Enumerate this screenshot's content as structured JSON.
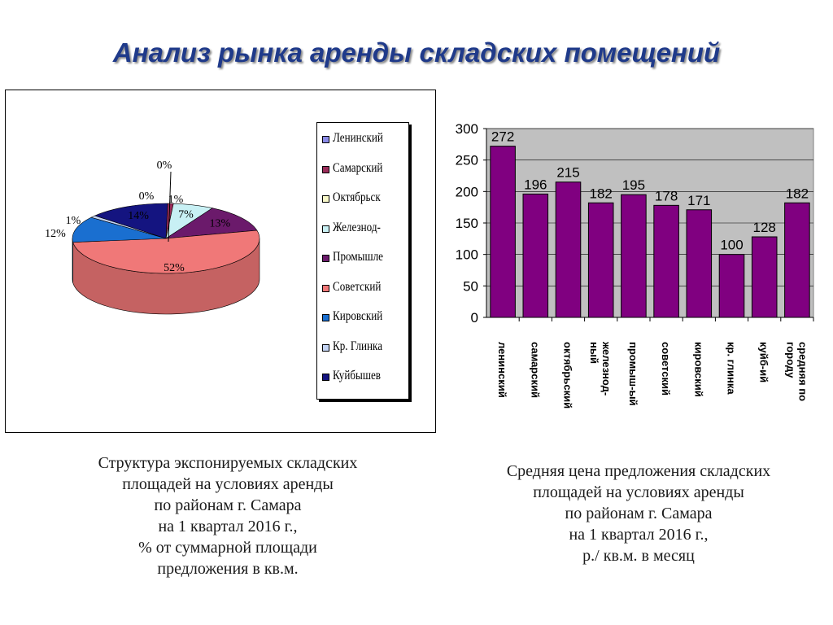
{
  "title": "Анализ рынка аренды складских помещений",
  "pie": {
    "caption": [
      "Структура экспонируемых складских",
      "площадей на условиях аренды",
      "по районам г. Самара",
      "на 1 квартал 2016 г.,",
      "% от суммарной площади",
      "предложения в кв.м."
    ]
  },
  "bar": {
    "caption": [
      "Средняя цена предложения складских",
      "площадей на условиях аренды",
      "по районам г. Самара",
      "на 1 квартал 2016 г.,",
      "р./ кв.м. в месяц"
    ]
  },
  "chart_data": [
    {
      "type": "pie",
      "categories": [
        "Ленинский",
        "Самарский",
        "Октябрьский",
        "Железнод-",
        "Промышле",
        "Советский",
        "Кировский",
        "Кр. Глинка",
        "Куйбышев"
      ],
      "legend_labels": [
        "Ленинский",
        "Самарский",
        "Октябрьск",
        "Железнод-",
        "Промышле",
        "Советский",
        "Кировский",
        "Кр. Глинка",
        "Куйбышев"
      ],
      "values": [
        0,
        1,
        0,
        7,
        13,
        52,
        12,
        1,
        14
      ],
      "value_labels": [
        "0%",
        "1%",
        "0%",
        "7%",
        "13%",
        "52%",
        "12%",
        "1%",
        "14%"
      ],
      "colors": [
        "#8a8ae6",
        "#9b2d5a",
        "#f8f8c8",
        "#c8f0f4",
        "#6b1a6b",
        "#f07878",
        "#1a6fd0",
        "#c4d4f4",
        "#141480"
      ],
      "legend_position": "right"
    },
    {
      "type": "bar",
      "categories": [
        "ленинский",
        "самарский",
        "октябрьский",
        "железнод-ный",
        "промыш-ый",
        "советский",
        "кировский",
        "кр. глинка",
        "куйб-ий",
        "средняя по городу"
      ],
      "tick_label_lines": [
        [
          "ленинский"
        ],
        [
          "самарский"
        ],
        [
          "октябрьский"
        ],
        [
          "железнод-",
          "ный"
        ],
        [
          "промыш-ый"
        ],
        [
          "советский"
        ],
        [
          "кировский"
        ],
        [
          "кр. глинка"
        ],
        [
          "куйб-ий"
        ],
        [
          "средняя по",
          "городу"
        ]
      ],
      "values": [
        272,
        196,
        215,
        182,
        195,
        178,
        171,
        100,
        128,
        182
      ],
      "value_labels": [
        "272",
        "196",
        "215",
        "182",
        "195",
        "178",
        "171",
        "100",
        "128",
        "182"
      ],
      "yticks": [
        "0",
        "50",
        "100",
        "150",
        "200",
        "250",
        "300"
      ],
      "ylim": [
        0,
        300
      ],
      "grid": true,
      "colors": {
        "bar": "#800080",
        "plot_bg": "#c0c0c0"
      }
    }
  ]
}
